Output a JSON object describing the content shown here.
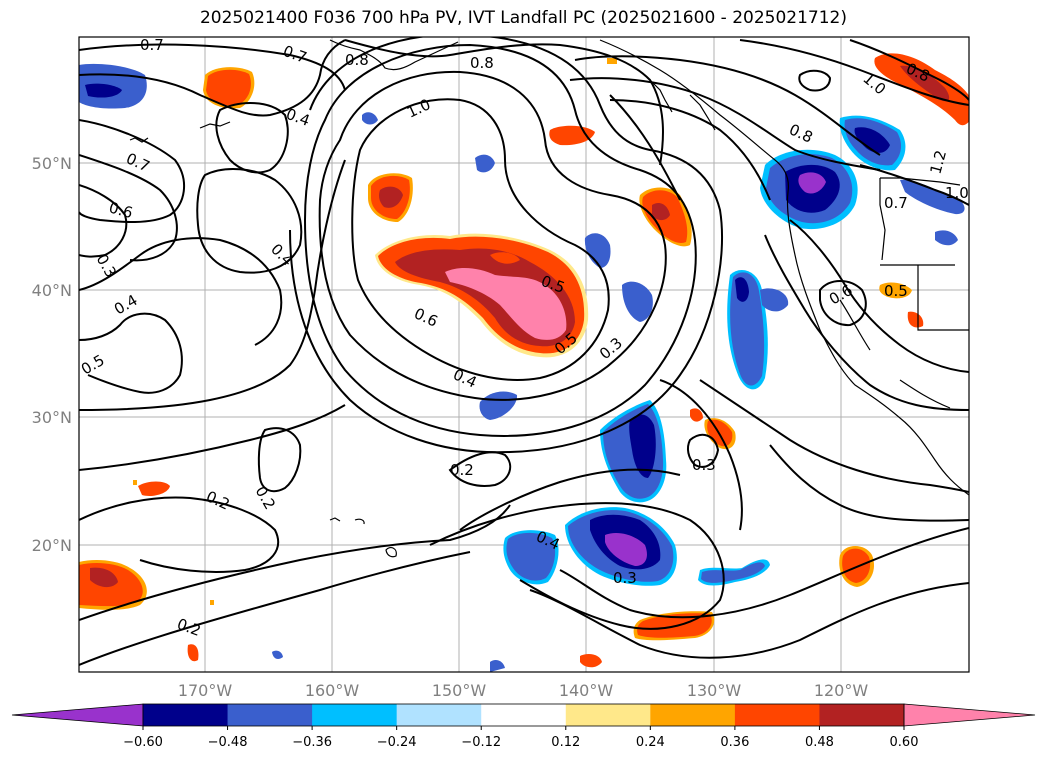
{
  "title": "2025021400 F036 700 hPa PV, IVT Landfall PC (2025021600 - 2025021712)",
  "lat_labels": [
    "50°N",
    "40°N",
    "30°N",
    "20°N"
  ],
  "lon_labels": [
    "170°W",
    "160°W",
    "150°W",
    "140°W",
    "130°W",
    "120°W"
  ],
  "colorbar": {
    "ticks": [
      "−0.60",
      "−0.48",
      "−0.36",
      "−0.24",
      "−0.12",
      "0.12",
      "0.24",
      "0.36",
      "0.48",
      "0.60"
    ],
    "colors": [
      "#9932cc",
      "#00008b",
      "#3a5fcd",
      "#00bfff",
      "#b0e2ff",
      "#ffffff",
      "#ffe88a",
      "#ffa500",
      "#ff4500",
      "#b22222",
      "#ff82ab"
    ]
  },
  "contour_labels": [
    "0.7",
    "0.7",
    "0.8",
    "0.8",
    "1.0",
    "0.4",
    "0.7",
    "0.6",
    "0.3",
    "0.4",
    "0.4",
    "0.5",
    "0.6",
    "0.4",
    "0.5",
    "0.5",
    "0.3",
    "0.8",
    "1.0",
    "0.8",
    "1.2",
    "1.0",
    "0.7",
    "0.6",
    "0.5",
    "0.2",
    "0.2",
    "0.2",
    "0.4",
    "0.3",
    "0.3",
    "0.2"
  ]
}
